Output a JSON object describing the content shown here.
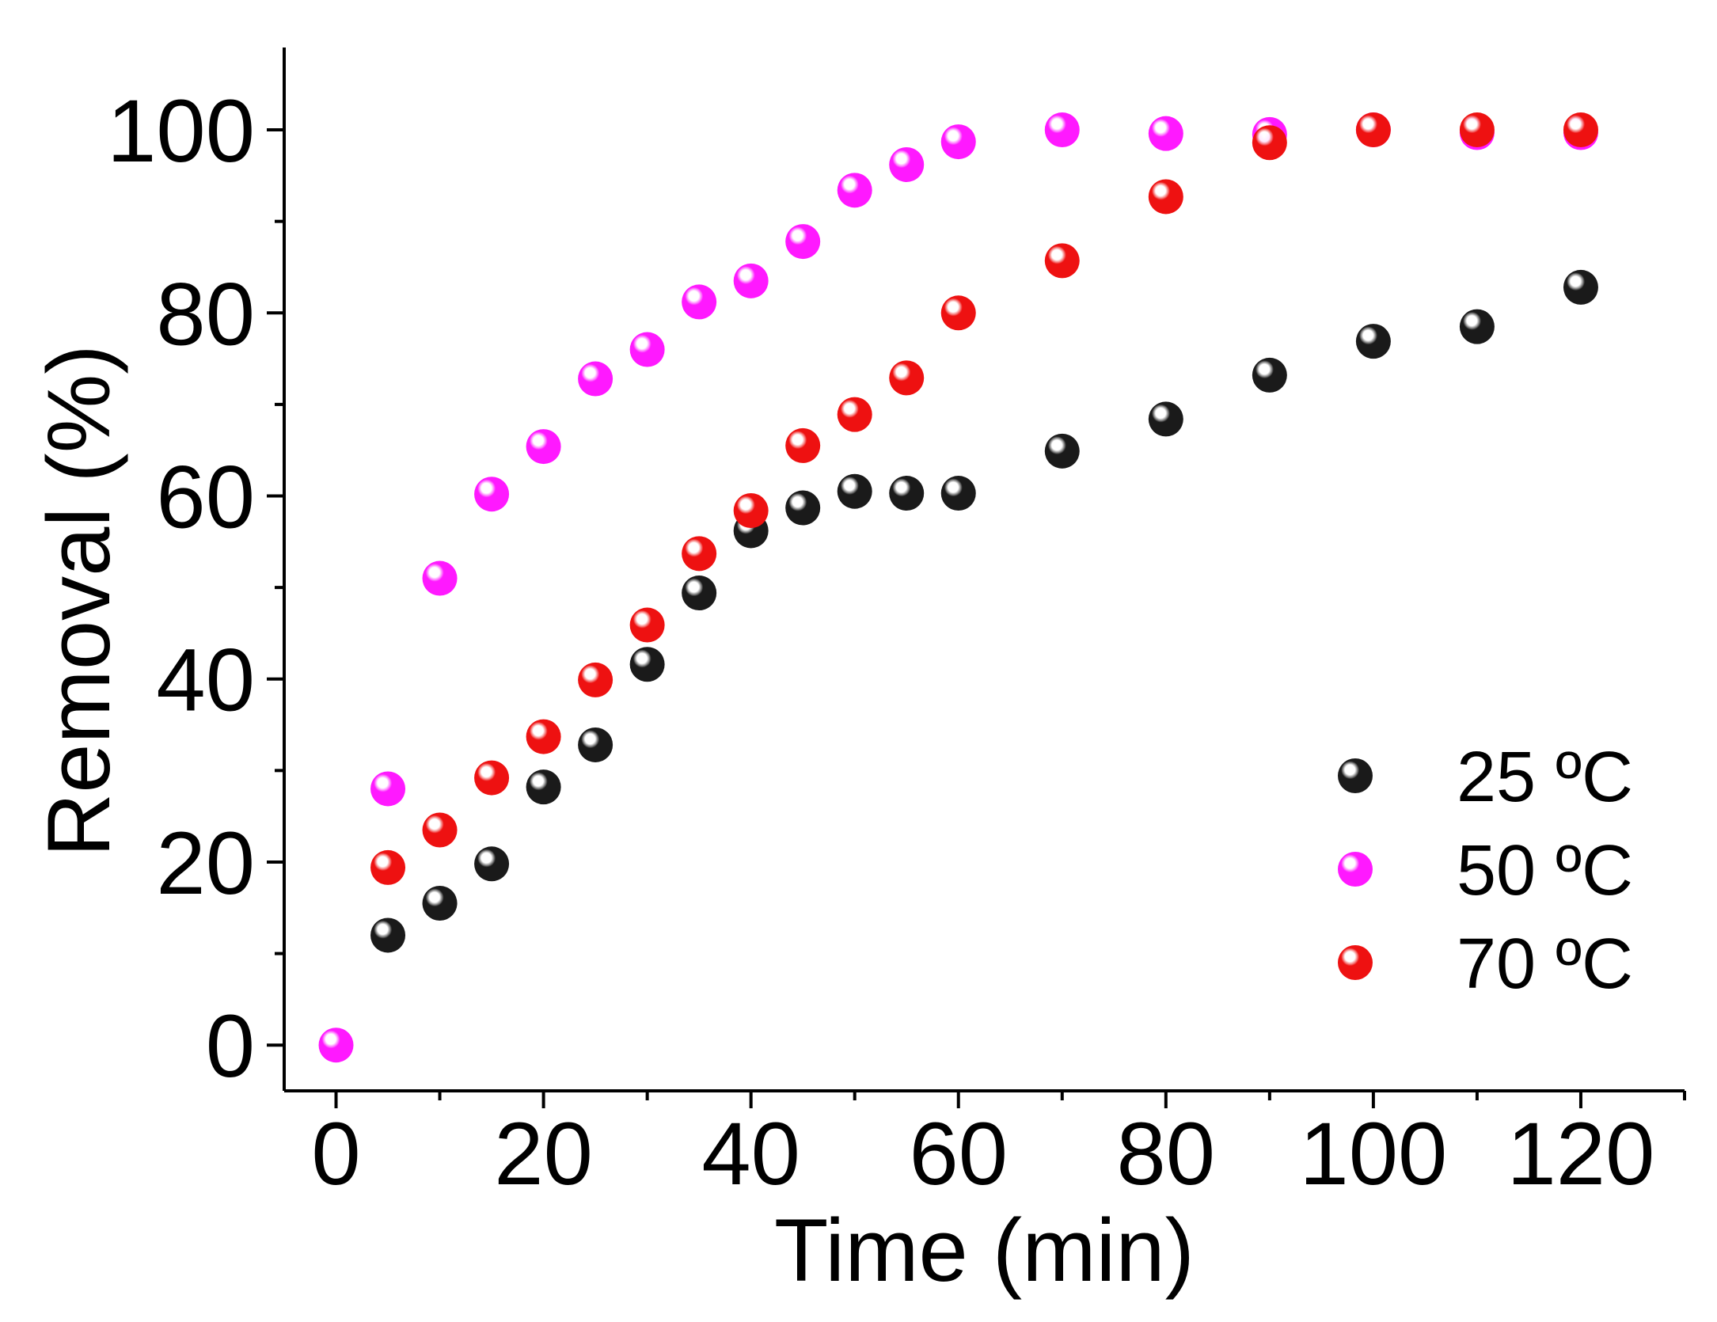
{
  "chart_data": {
    "type": "scatter",
    "title": "",
    "xlabel": "Time (min)",
    "ylabel": "Removal (%)",
    "xlim": [
      -5,
      130
    ],
    "ylim": [
      -5,
      109
    ],
    "xticks": [
      0,
      20,
      40,
      60,
      80,
      100,
      120
    ],
    "yticks": [
      0,
      20,
      40,
      60,
      80,
      100
    ],
    "x_minor_step": 10,
    "y_minor_step": 10,
    "grid": false,
    "legend_position": "bottom-right",
    "series": [
      {
        "name": "25 ºC",
        "color": "#1a1a1a",
        "points": [
          [
            5,
            12
          ],
          [
            10,
            15.5
          ],
          [
            15,
            19.8
          ],
          [
            20,
            28.2
          ],
          [
            25,
            32.8
          ],
          [
            30,
            41.6
          ],
          [
            35,
            49.4
          ],
          [
            40,
            56.2
          ],
          [
            45,
            58.7
          ],
          [
            50,
            60.5
          ],
          [
            55,
            60.3
          ],
          [
            60,
            60.3
          ],
          [
            70,
            64.9
          ],
          [
            80,
            68.4
          ],
          [
            90,
            73.2
          ],
          [
            100,
            76.9
          ],
          [
            110,
            78.5
          ],
          [
            120,
            82.8
          ]
        ]
      },
      {
        "name": "50 ºC",
        "color": "#ff19ff",
        "points": [
          [
            0,
            0
          ],
          [
            5,
            28
          ],
          [
            10,
            51
          ],
          [
            15,
            60.2
          ],
          [
            20,
            65.4
          ],
          [
            25,
            72.8
          ],
          [
            30,
            76
          ],
          [
            35,
            81.2
          ],
          [
            40,
            83.5
          ],
          [
            45,
            87.8
          ],
          [
            50,
            93.4
          ],
          [
            55,
            96.2
          ],
          [
            60,
            98.7
          ],
          [
            70,
            100
          ],
          [
            80,
            99.6
          ],
          [
            90,
            99.5
          ],
          [
            100,
            100
          ],
          [
            110,
            99.7
          ],
          [
            120,
            99.7
          ]
        ]
      },
      {
        "name": "70 ºC",
        "color": "#ee1111",
        "points": [
          [
            5,
            19.4
          ],
          [
            10,
            23.5
          ],
          [
            15,
            29.2
          ],
          [
            20,
            33.7
          ],
          [
            25,
            39.9
          ],
          [
            30,
            45.9
          ],
          [
            35,
            53.7
          ],
          [
            40,
            58.4
          ],
          [
            45,
            65.5
          ],
          [
            50,
            68.9
          ],
          [
            55,
            72.9
          ],
          [
            60,
            80
          ],
          [
            70,
            85.7
          ],
          [
            80,
            92.7
          ],
          [
            90,
            98.6
          ],
          [
            100,
            100
          ],
          [
            110,
            100
          ],
          [
            120,
            100
          ]
        ]
      }
    ]
  }
}
